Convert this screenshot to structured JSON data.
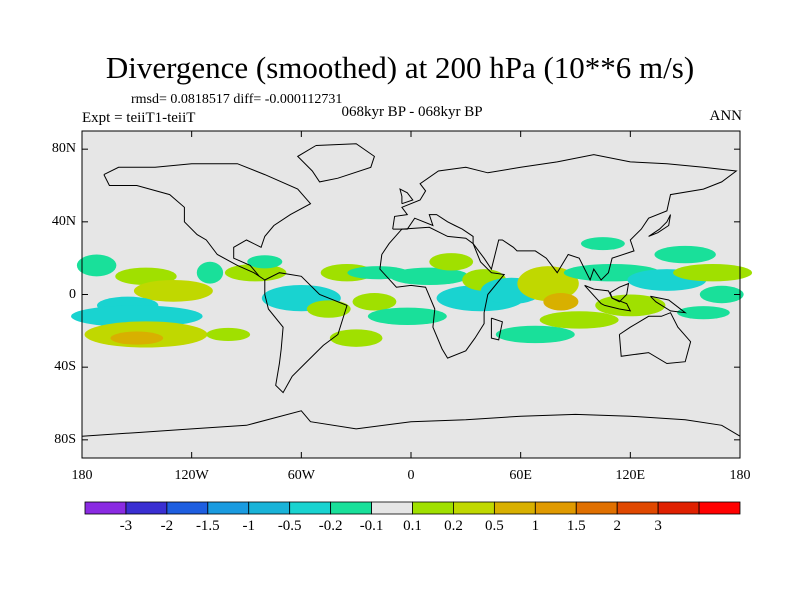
{
  "title": "Divergence (smoothed) at 200 hPa (10**6 m/s)",
  "stats": "rmsd= 0.0818517 diff= -0.000112731",
  "experiment": "Expt = teiiT1-teiiT",
  "period": "068kyr BP - 068kyr BP",
  "season": "ANN",
  "lat_ticks": [
    "80N",
    "40N",
    "0",
    "40S",
    "80S"
  ],
  "lon_ticks": [
    "180",
    "120W",
    "60W",
    "0",
    "60E",
    "120E",
    "180"
  ],
  "colorbar": {
    "colors": [
      "#8a2be2",
      "#3a2fd2",
      "#1e5ee0",
      "#1a9be0",
      "#19b3d8",
      "#19d3d0",
      "#19e09a",
      "#e6e6e6",
      "#a0e000",
      "#c0d800",
      "#d8b000",
      "#e09a00",
      "#e07000",
      "#e04800",
      "#e02000",
      "#ff0000"
    ],
    "labels": [
      "-3",
      "-2",
      "-1.5",
      "-1",
      "-0.5",
      "-0.2",
      "-0.1",
      "0.1",
      "0.2",
      "0.5",
      "1",
      "1.5",
      "2",
      "3"
    ]
  },
  "map_colors": {
    "neutral": "#e6e6e6",
    "pos_weak": "#a0e000",
    "pos_mid": "#c0d800",
    "pos_strong": "#d8b000",
    "neg_weak": "#19e09a",
    "neg_mid": "#19d3d0",
    "neg_strong": "#19b3d8"
  }
}
